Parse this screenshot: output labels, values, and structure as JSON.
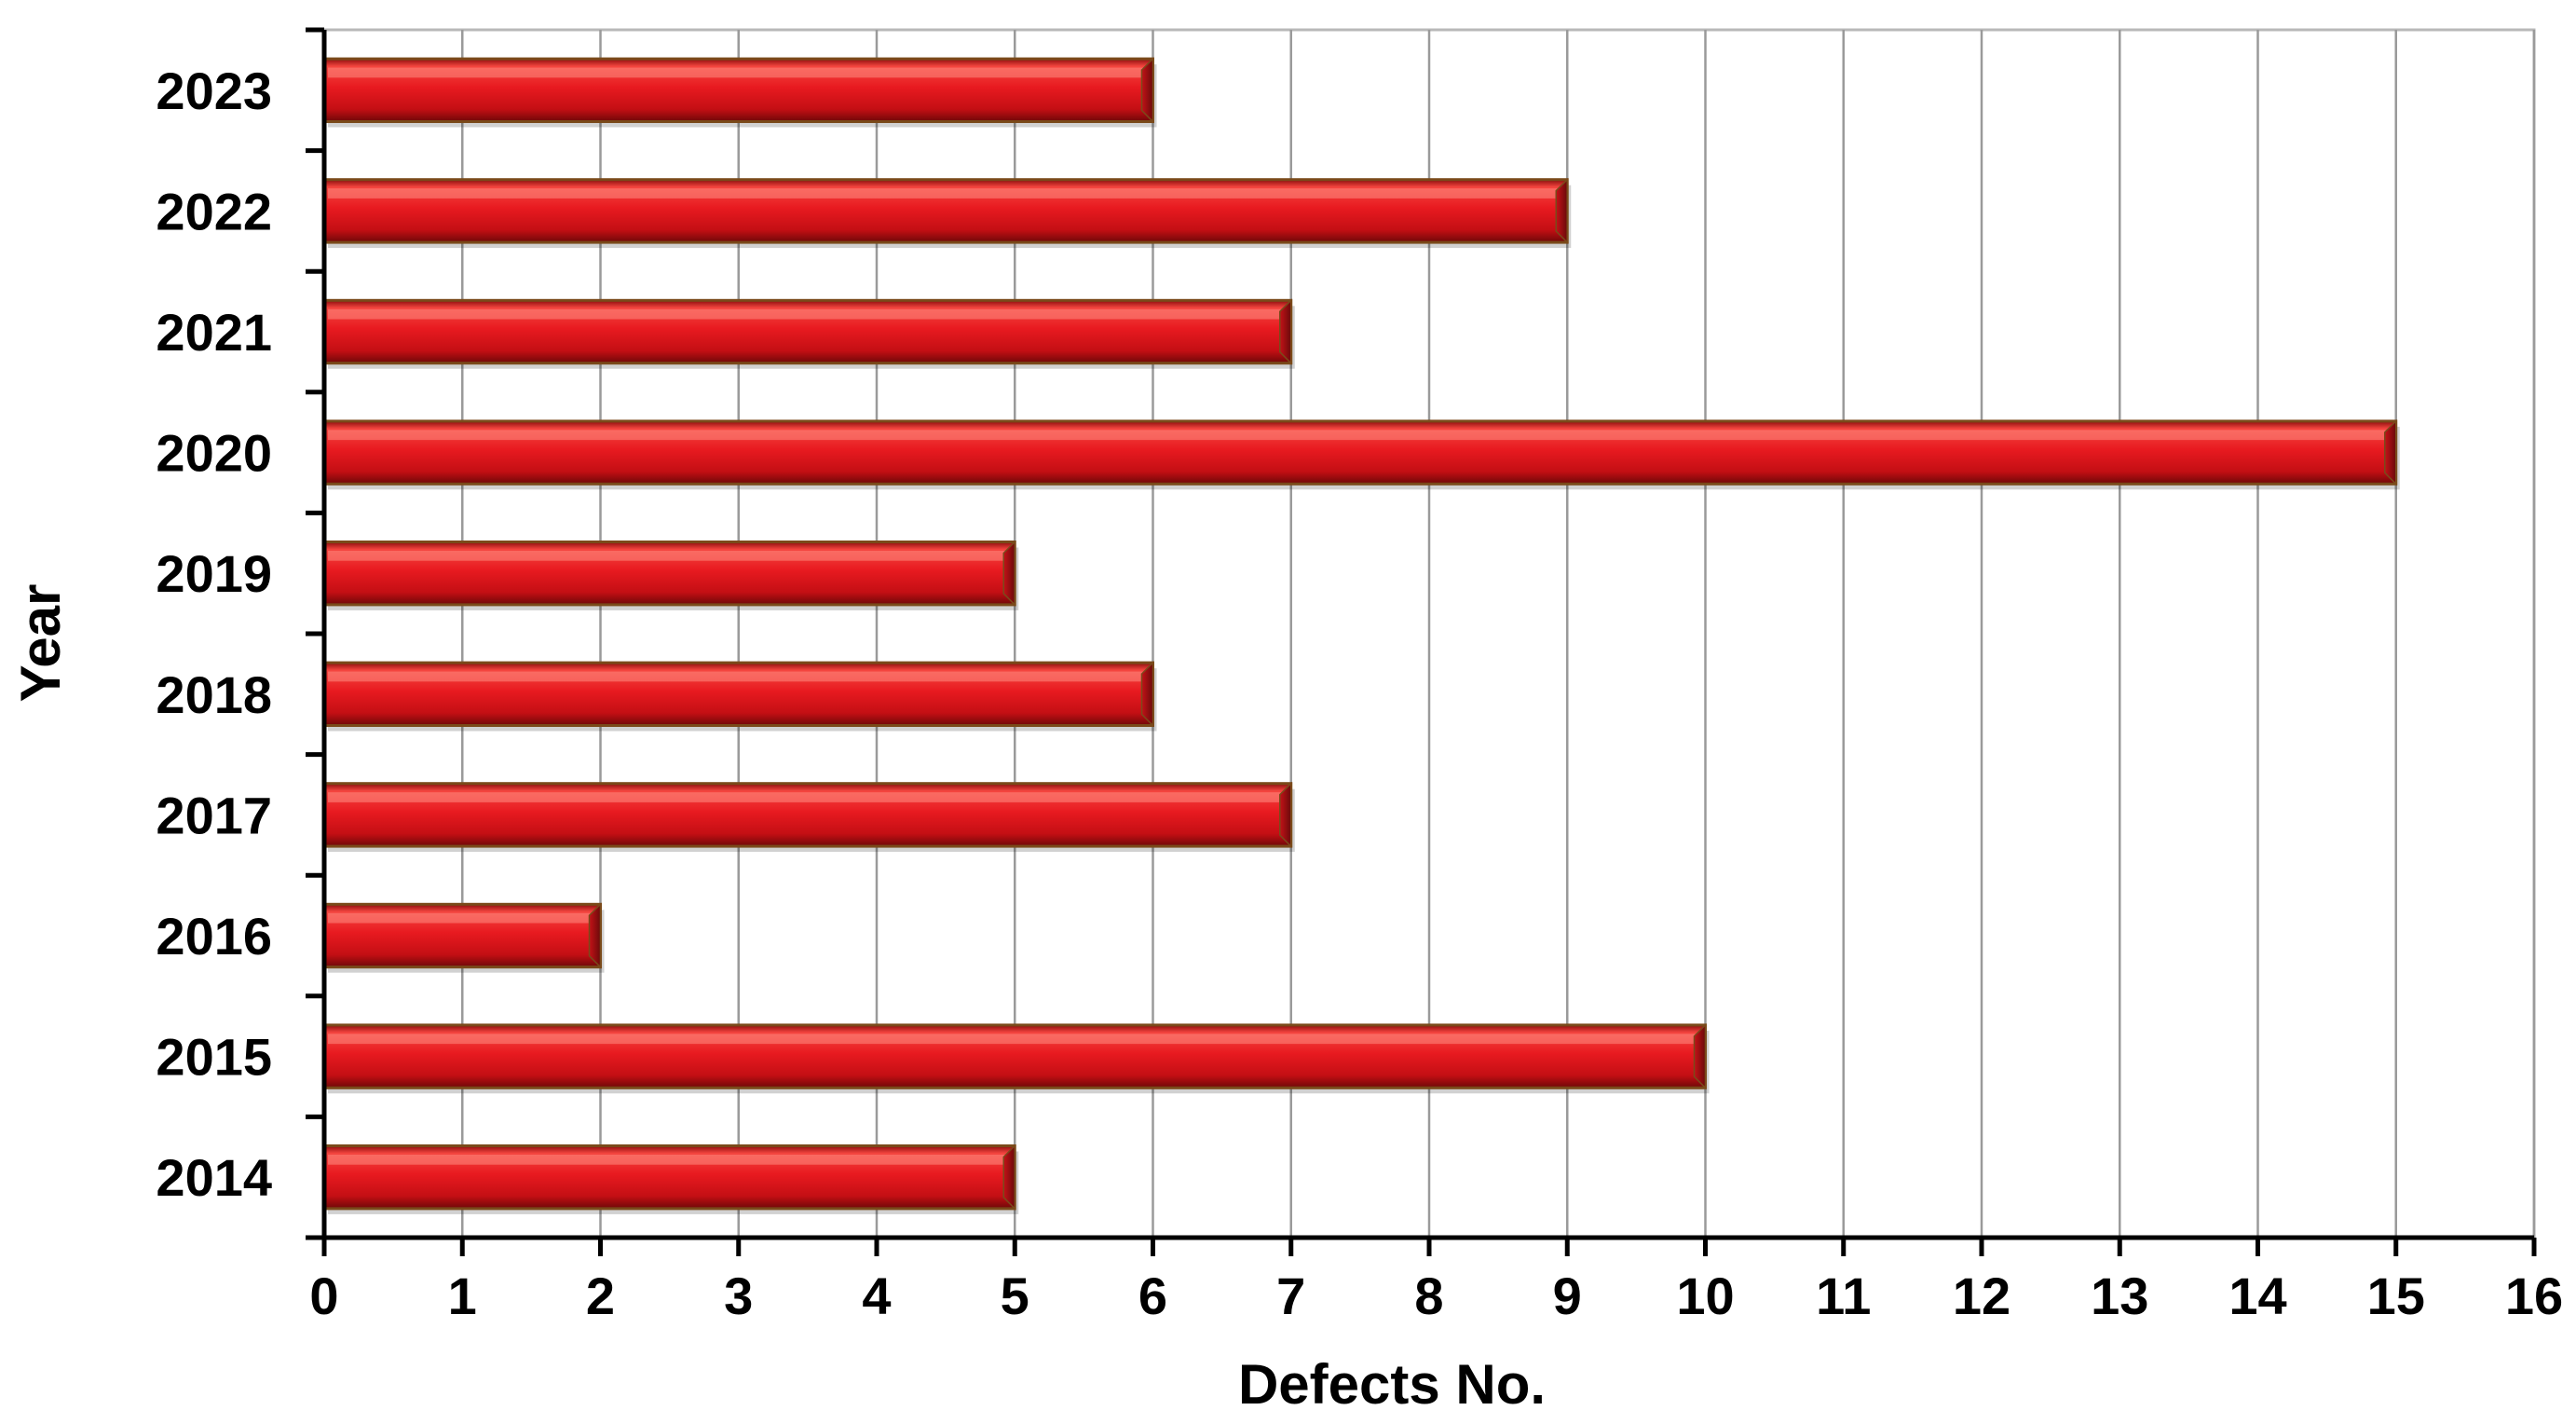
{
  "chart_data": {
    "type": "bar",
    "orientation": "horizontal",
    "categories": [
      "2014",
      "2015",
      "2016",
      "2017",
      "2018",
      "2019",
      "2020",
      "2021",
      "2022",
      "2023"
    ],
    "values": [
      5,
      10,
      2,
      7,
      6,
      5,
      15,
      7,
      9,
      6
    ],
    "xlabel": "Defects No.",
    "ylabel": "Year",
    "xlim": [
      0,
      16
    ],
    "xticks": [
      "0",
      "1",
      "2",
      "3",
      "4",
      "5",
      "6",
      "7",
      "8",
      "9",
      "10",
      "11",
      "12",
      "13",
      "14",
      "15",
      "16"
    ],
    "grid": true,
    "bar_color": "#e0141c",
    "bar_edge_color": "#7a4a1a"
  }
}
